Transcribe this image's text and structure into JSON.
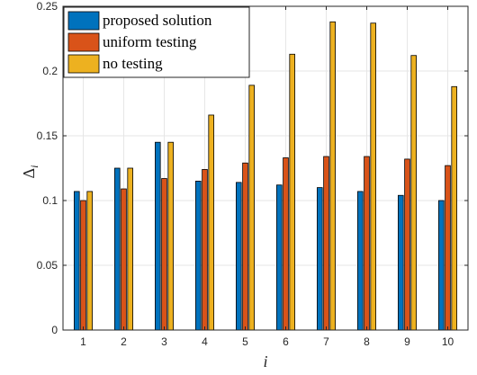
{
  "chart_data": {
    "type": "bar",
    "categories": [
      "1",
      "2",
      "3",
      "4",
      "5",
      "6",
      "7",
      "8",
      "9",
      "10"
    ],
    "series": [
      {
        "name": "proposed solution",
        "color": "#0072BD",
        "values": [
          0.107,
          0.125,
          0.145,
          0.115,
          0.114,
          0.112,
          0.11,
          0.107,
          0.104,
          0.1
        ]
      },
      {
        "name": "uniform testing",
        "color": "#D95319",
        "values": [
          0.1,
          0.109,
          0.117,
          0.124,
          0.129,
          0.133,
          0.134,
          0.134,
          0.132,
          0.127
        ]
      },
      {
        "name": "no testing",
        "color": "#EDB120",
        "values": [
          0.107,
          0.125,
          0.145,
          0.166,
          0.189,
          0.213,
          0.238,
          0.237,
          0.212,
          0.188
        ]
      }
    ],
    "xlabel": "i",
    "ylabel": "Δ",
    "ylabel_subscript": "i",
    "ylim": [
      0,
      0.25
    ],
    "yticks": [
      0,
      0.05,
      0.1,
      0.15,
      0.2,
      0.25
    ],
    "ytick_labels": [
      "0",
      "0.05",
      "0.1",
      "0.15",
      "0.2",
      "0.25"
    ],
    "grid": true,
    "legend_position": "top-left",
    "title": ""
  }
}
